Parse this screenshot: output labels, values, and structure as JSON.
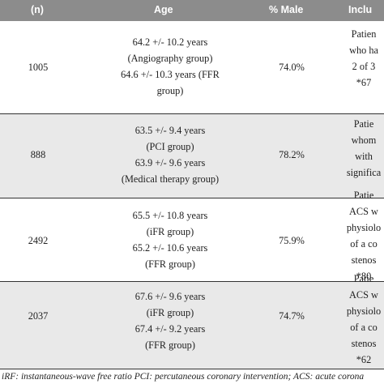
{
  "header": {
    "n": "(n)",
    "age": "Age",
    "male": "% Male",
    "inclusion": "Inclu"
  },
  "rows": [
    {
      "n": "1005",
      "age": [
        "64.2 +/- 10.2 years",
        "(Angiography group)",
        "64.6 +/- 10.3 years (FFR",
        "group)"
      ],
      "male": "74.0%",
      "inclusion": [
        "Patien",
        "who ha",
        "2 of 3",
        "*67"
      ]
    },
    {
      "n": "888",
      "age": [
        "63.5 +/- 9.4 years",
        "(PCI group)",
        "63.9 +/- 9.6 years",
        "(Medical therapy group)"
      ],
      "male": "78.2%",
      "inclusion": [
        "Patie",
        "whom",
        "with",
        "significa"
      ]
    },
    {
      "n": "2492",
      "age": [
        "65.5 +/- 10.8 years",
        "(iFR group)",
        "65.2 +/- 10.6 years",
        "(FFR group)"
      ],
      "male": "75.9%",
      "inclusion": [
        "Patie",
        "ACS w",
        "physiolo",
        "of a co",
        "stenos",
        "*80"
      ]
    },
    {
      "n": "2037",
      "age": [
        "67.6 +/- 9.6 years",
        "(iFR group)",
        "67.4 +/- 9.2 years",
        "(FFR group)"
      ],
      "male": "74.7%",
      "inclusion": [
        "Patie",
        "ACS w",
        "physiolo",
        "of a co",
        "stenos",
        "*62"
      ]
    }
  ],
  "footnote": "iRF: instantaneous-wave free ratio PCI: percutaneous coronary intervention; ACS: acute corona"
}
